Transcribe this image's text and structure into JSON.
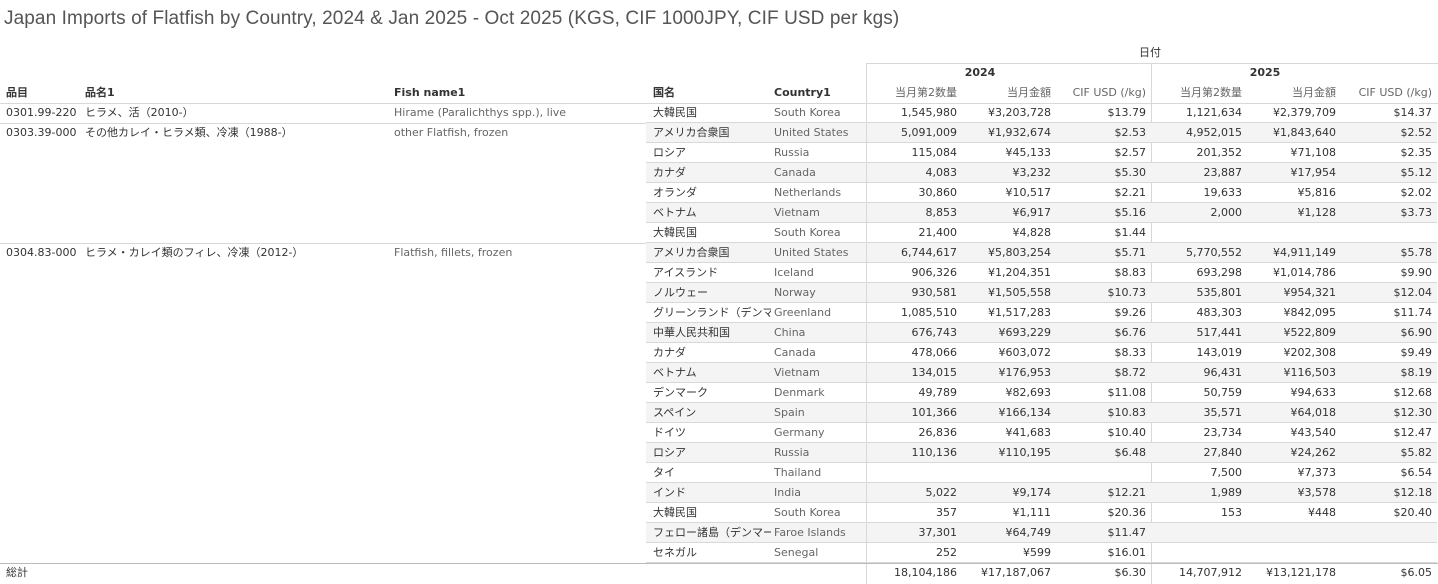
{
  "title": "Japan Imports of Flatfish by Country, 2024 & Jan 2025 - Oct 2025 (KGS, CIF 1000JPY, CIF USD per kgs)",
  "header": {
    "date_label": "日付",
    "years": [
      "2024",
      "2025"
    ],
    "cols": [
      "品目",
      "品名1",
      "Fish name1",
      "国名",
      "Country1"
    ],
    "measures": [
      "当月第2数量",
      "当月金額",
      "CIF USD (/kg)"
    ]
  },
  "rows": [
    {
      "code": "0301.99-220",
      "name_jp": "ヒラメ、活（2010-）",
      "name_en": "Hirame (Paralichthys spp.), live",
      "country_jp": "大韓民国",
      "country_en": "South Korea",
      "v": [
        "1,545,980",
        "¥3,203,728",
        "$13.79",
        "1,121,634",
        "¥2,379,709",
        "$14.37"
      ]
    },
    {
      "code": "0303.39-000",
      "name_jp": "その他カレイ・ヒラメ類、冷凍（1988-）",
      "name_en": "other Flatfish, frozen",
      "country_jp": "アメリカ合衆国",
      "country_en": "United States",
      "v": [
        "5,091,009",
        "¥1,932,674",
        "$2.53",
        "4,952,015",
        "¥1,843,640",
        "$2.52"
      ]
    },
    {
      "code": "",
      "name_jp": "",
      "name_en": "",
      "country_jp": "ロシア",
      "country_en": "Russia",
      "v": [
        "115,084",
        "¥45,133",
        "$2.57",
        "201,352",
        "¥71,108",
        "$2.35"
      ]
    },
    {
      "code": "",
      "name_jp": "",
      "name_en": "",
      "country_jp": "カナダ",
      "country_en": "Canada",
      "v": [
        "4,083",
        "¥3,232",
        "$5.30",
        "23,887",
        "¥17,954",
        "$5.12"
      ]
    },
    {
      "code": "",
      "name_jp": "",
      "name_en": "",
      "country_jp": "オランダ",
      "country_en": "Netherlands",
      "v": [
        "30,860",
        "¥10,517",
        "$2.21",
        "19,633",
        "¥5,816",
        "$2.02"
      ]
    },
    {
      "code": "",
      "name_jp": "",
      "name_en": "",
      "country_jp": "ベトナム",
      "country_en": "Vietnam",
      "v": [
        "8,853",
        "¥6,917",
        "$5.16",
        "2,000",
        "¥1,128",
        "$3.73"
      ]
    },
    {
      "code": "",
      "name_jp": "",
      "name_en": "",
      "country_jp": "大韓民国",
      "country_en": "South Korea",
      "v": [
        "21,400",
        "¥4,828",
        "$1.44",
        "",
        "",
        ""
      ]
    },
    {
      "code": "0304.83-000",
      "name_jp": "ヒラメ・カレイ類のフィレ、冷凍（2012-）",
      "name_en": "Flatfish, fillets, frozen",
      "country_jp": "アメリカ合衆国",
      "country_en": "United States",
      "v": [
        "6,744,617",
        "¥5,803,254",
        "$5.71",
        "5,770,552",
        "¥4,911,149",
        "$5.78"
      ]
    },
    {
      "code": "",
      "name_jp": "",
      "name_en": "",
      "country_jp": "アイスランド",
      "country_en": "Iceland",
      "v": [
        "906,326",
        "¥1,204,351",
        "$8.83",
        "693,298",
        "¥1,014,786",
        "$9.90"
      ]
    },
    {
      "code": "",
      "name_jp": "",
      "name_en": "",
      "country_jp": "ノルウェー",
      "country_en": "Norway",
      "v": [
        "930,581",
        "¥1,505,558",
        "$10.73",
        "535,801",
        "¥954,321",
        "$12.04"
      ]
    },
    {
      "code": "",
      "name_jp": "",
      "name_en": "",
      "country_jp": "グリーンランド（デンマ..",
      "country_en": "Greenland",
      "v": [
        "1,085,510",
        "¥1,517,283",
        "$9.26",
        "483,303",
        "¥842,095",
        "$11.74"
      ]
    },
    {
      "code": "",
      "name_jp": "",
      "name_en": "",
      "country_jp": "中華人民共和国",
      "country_en": "China",
      "v": [
        "676,743",
        "¥693,229",
        "$6.76",
        "517,441",
        "¥522,809",
        "$6.90"
      ]
    },
    {
      "code": "",
      "name_jp": "",
      "name_en": "",
      "country_jp": "カナダ",
      "country_en": "Canada",
      "v": [
        "478,066",
        "¥603,072",
        "$8.33",
        "143,019",
        "¥202,308",
        "$9.49"
      ]
    },
    {
      "code": "",
      "name_jp": "",
      "name_en": "",
      "country_jp": "ベトナム",
      "country_en": "Vietnam",
      "v": [
        "134,015",
        "¥176,953",
        "$8.72",
        "96,431",
        "¥116,503",
        "$8.19"
      ]
    },
    {
      "code": "",
      "name_jp": "",
      "name_en": "",
      "country_jp": "デンマーク",
      "country_en": "Denmark",
      "v": [
        "49,789",
        "¥82,693",
        "$11.08",
        "50,759",
        "¥94,633",
        "$12.68"
      ]
    },
    {
      "code": "",
      "name_jp": "",
      "name_en": "",
      "country_jp": "スペイン",
      "country_en": "Spain",
      "v": [
        "101,366",
        "¥166,134",
        "$10.83",
        "35,571",
        "¥64,018",
        "$12.30"
      ]
    },
    {
      "code": "",
      "name_jp": "",
      "name_en": "",
      "country_jp": "ドイツ",
      "country_en": "Germany",
      "v": [
        "26,836",
        "¥41,683",
        "$10.40",
        "23,734",
        "¥43,540",
        "$12.47"
      ]
    },
    {
      "code": "",
      "name_jp": "",
      "name_en": "",
      "country_jp": "ロシア",
      "country_en": "Russia",
      "v": [
        "110,136",
        "¥110,195",
        "$6.48",
        "27,840",
        "¥24,262",
        "$5.82"
      ]
    },
    {
      "code": "",
      "name_jp": "",
      "name_en": "",
      "country_jp": "タイ",
      "country_en": "Thailand",
      "v": [
        "",
        "",
        "",
        "7,500",
        "¥7,373",
        "$6.54"
      ]
    },
    {
      "code": "",
      "name_jp": "",
      "name_en": "",
      "country_jp": "インド",
      "country_en": "India",
      "v": [
        "5,022",
        "¥9,174",
        "$12.21",
        "1,989",
        "¥3,578",
        "$12.18"
      ]
    },
    {
      "code": "",
      "name_jp": "",
      "name_en": "",
      "country_jp": "大韓民国",
      "country_en": "South Korea",
      "v": [
        "357",
        "¥1,111",
        "$20.36",
        "153",
        "¥448",
        "$20.40"
      ]
    },
    {
      "code": "",
      "name_jp": "",
      "name_en": "",
      "country_jp": "フェロー諸島（デンマー..",
      "country_en": "Faroe Islands",
      "v": [
        "37,301",
        "¥64,749",
        "$11.47",
        "",
        "",
        ""
      ]
    },
    {
      "code": "",
      "name_jp": "",
      "name_en": "",
      "country_jp": "セネガル",
      "country_en": "Senegal",
      "v": [
        "252",
        "¥599",
        "$16.01",
        "",
        "",
        ""
      ]
    }
  ],
  "total": {
    "label": "総計",
    "v": [
      "18,104,186",
      "¥17,187,067",
      "$6.30",
      "14,707,912",
      "¥13,121,178",
      "$6.05"
    ]
  },
  "colors": {
    "stripe": "#f4f4f4",
    "line": "#d8d8d8",
    "text": "#333333",
    "dim_text": "#666666"
  },
  "chart_data": {
    "type": "table",
    "title": "Japan Imports of Flatfish by Country, 2024 & Jan 2025 - Oct 2025 (KGS, CIF 1000JPY, CIF USD per kgs)",
    "columns": [
      "品目",
      "品名1",
      "Fish name1",
      "国名",
      "Country1",
      "2024 当月第2数量",
      "2024 当月金額",
      "2024 CIF USD (/kg)",
      "2025 当月第2数量",
      "2025 当月金額",
      "2025 CIF USD (/kg)"
    ],
    "see_rows": "rows"
  }
}
